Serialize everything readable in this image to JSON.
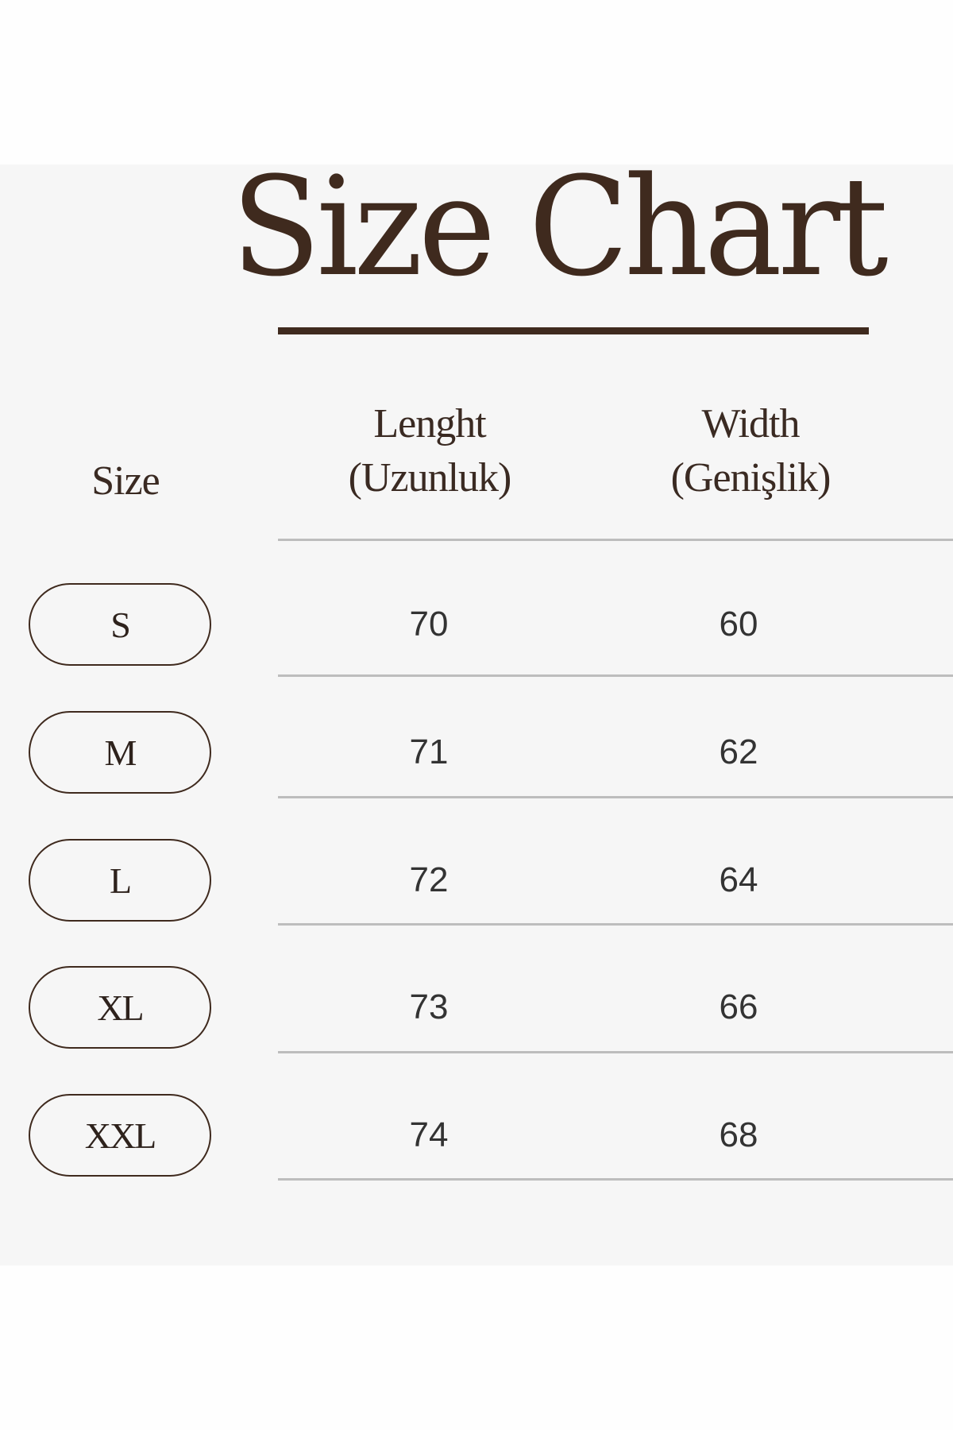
{
  "title": "Size Chart",
  "headers": {
    "size": "Size",
    "length": "Lenght",
    "length_sub": "(Uzunluk)",
    "width": "Width",
    "width_sub": "(Genişlik)"
  },
  "rows": [
    {
      "size": "S",
      "length": "70",
      "width": "60"
    },
    {
      "size": "M",
      "length": "71",
      "width": "62"
    },
    {
      "size": "L",
      "length": "72",
      "width": "64"
    },
    {
      "size": "XL",
      "length": "73",
      "width": "66"
    },
    {
      "size": "XXL",
      "length": "74",
      "width": "68"
    }
  ],
  "colors": {
    "accent": "#3f2a1e",
    "background": "#f6f6f6",
    "rule": "#bdbdbd"
  }
}
